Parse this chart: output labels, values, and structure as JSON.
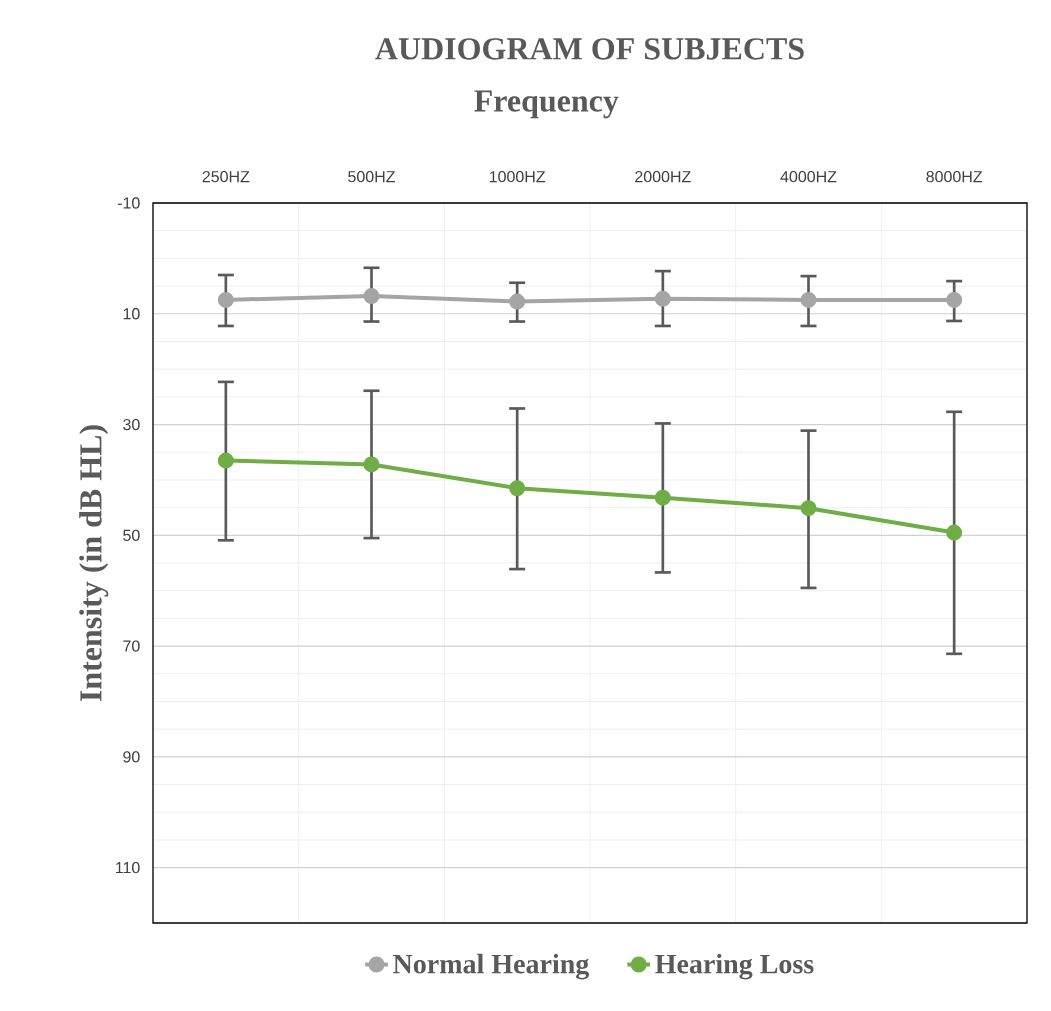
{
  "chart_data": {
    "type": "line",
    "title": "AUDIOGRAM OF SUBJECTS",
    "xlabel": "Frequency",
    "ylabel": "Intensity (in dB HL)",
    "categories": [
      "250HZ",
      "500HZ",
      "1000HZ",
      "2000HZ",
      "4000HZ",
      "8000HZ"
    ],
    "series": [
      {
        "name": "Normal Hearing",
        "color": "#a5a5a5",
        "values": [
          7.5,
          6.8,
          7.8,
          7.3,
          7.5,
          7.5
        ],
        "errors": [
          [
            3.0,
            12.2
          ],
          [
            1.7,
            11.4
          ],
          [
            4.4,
            11.4
          ],
          [
            2.3,
            12.2
          ],
          [
            3.2,
            12.2
          ],
          [
            4.1,
            11.3
          ]
        ]
      },
      {
        "name": "Hearing Loss",
        "color": "#70ad47",
        "values": [
          36.5,
          37.2,
          41.5,
          43.2,
          45.1,
          49.5
        ],
        "errors": [
          [
            22.3,
            50.9
          ],
          [
            23.9,
            50.5
          ],
          [
            27.1,
            56.1
          ],
          [
            29.8,
            56.7
          ],
          [
            31.1,
            59.5
          ],
          [
            27.7,
            71.4
          ]
        ]
      }
    ],
    "ylim": [
      120,
      -10
    ],
    "yticks": [
      -10,
      10,
      30,
      50,
      70,
      90,
      110
    ],
    "grid": true,
    "legend": "bottom",
    "marker": "circle",
    "line_style": "solid"
  }
}
